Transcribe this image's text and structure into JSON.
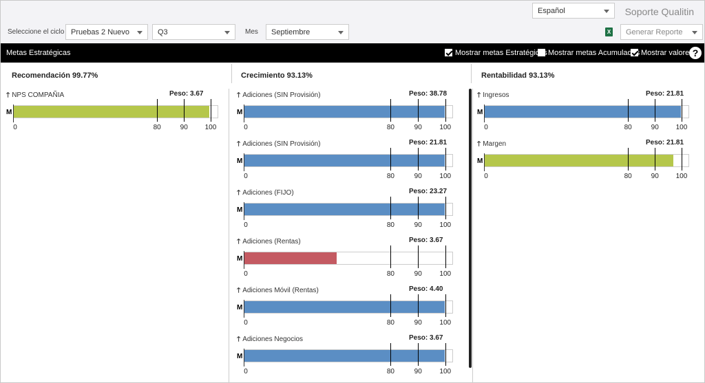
{
  "header": {
    "language": "Español",
    "brand": "Soporte Qualitin"
  },
  "filters": {
    "cycle_label": "Seleccione el ciclo",
    "cycle_value": "Pruebas 2 Nuevo",
    "quarter_value": "Q3",
    "month_label": "Mes",
    "month_value": "Septiembre",
    "excel_icon": "X",
    "report_placeholder": "Generar Reporte"
  },
  "toolbar": {
    "title": "Metas Estratégicas",
    "show_strategic": "Mostrar metas Estratégicas",
    "show_accumulated": "Mostrar metas Acumuladas",
    "show_values": "Mostrar valores",
    "help": "?"
  },
  "columns": [
    {
      "title": "Recomendación",
      "pct": "99.77%",
      "metrics": [
        {
          "name": "NPS COMPAÑIA",
          "peso": "3.67",
          "fill_pct": 99.77,
          "color": "#b5c74b"
        }
      ]
    },
    {
      "title": "Crecimiento",
      "pct": "93.13%",
      "metrics": [
        {
          "name": "Adiciones  (SIN Provisión)",
          "peso": "38.78",
          "fill_pct": 100,
          "color": "#5b8ec4"
        },
        {
          "name": "Adiciones (SIN Provisión)",
          "peso": "21.81",
          "fill_pct": 100,
          "color": "#5b8ec4"
        },
        {
          "name": "Adiciones   (FIJO)",
          "peso": "23.27",
          "fill_pct": 100,
          "color": "#5b8ec4"
        },
        {
          "name": "Adiciones  (Rentas)",
          "peso": "3.67",
          "fill_pct": 46,
          "color": "#c45a62"
        },
        {
          "name": "Adiciones  Móvil (Rentas)",
          "peso": "4.40",
          "fill_pct": 100,
          "color": "#5b8ec4"
        },
        {
          "name": "Adiciones  Negocios",
          "peso": "3.67",
          "fill_pct": 100,
          "color": "#5b8ec4"
        }
      ]
    },
    {
      "title": "Rentabilidad",
      "pct": "93.13%",
      "metrics": [
        {
          "name": "Ingresos",
          "peso": "21.81",
          "fill_pct": 100,
          "color": "#5b8ec4"
        },
        {
          "name": "Margen",
          "peso": "21.81",
          "fill_pct": 96,
          "color": "#b5c74b"
        }
      ]
    }
  ],
  "common": {
    "arrow": "🡑",
    "peso_label": "Peso:",
    "m_label": "M",
    "ticks": [
      "0",
      "80",
      "90",
      "100"
    ]
  }
}
